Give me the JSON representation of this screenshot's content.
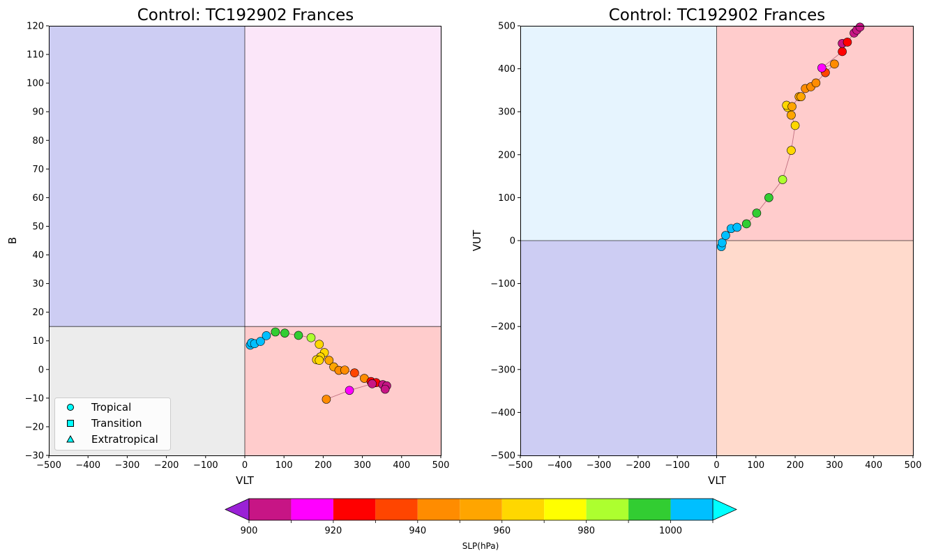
{
  "chart_data": [
    {
      "type": "scatter",
      "title": "Control: TC192902 Frances",
      "xlabel": "VLT",
      "ylabel": "B",
      "xlim": [
        -500,
        500
      ],
      "ylim": [
        -30,
        120
      ],
      "xticks": [
        "−500",
        "−400",
        "−300",
        "−200",
        "−100",
        "0",
        "100",
        "200",
        "300",
        "400",
        "500"
      ],
      "yticks": [
        "−30",
        "−20",
        "−10",
        "0",
        "10",
        "20",
        "30",
        "40",
        "50",
        "60",
        "70",
        "80",
        "90",
        "100",
        "110",
        "120"
      ],
      "quadrants": [
        {
          "x": [
            -500,
            0
          ],
          "y": [
            15,
            120
          ],
          "color": "#cdcdf3"
        },
        {
          "x": [
            0,
            500
          ],
          "y": [
            15,
            120
          ],
          "color": "#fbe6f9"
        },
        {
          "x": [
            -500,
            0
          ],
          "y": [
            -30,
            15
          ],
          "color": "#ececec"
        },
        {
          "x": [
            0,
            500
          ],
          "y": [
            -30,
            15
          ],
          "color": "#ffcccc"
        }
      ],
      "divider_x": 0,
      "divider_y": 15,
      "legend": {
        "position": "lower-left",
        "entries": [
          {
            "label": "Tropical",
            "marker": "circle"
          },
          {
            "label": "Transition",
            "marker": "square"
          },
          {
            "label": "Extratropical",
            "marker": "triangle"
          }
        ]
      },
      "points": [
        {
          "x": 14,
          "y": 8.5,
          "slp": 1005
        },
        {
          "x": 17,
          "y": 9.3,
          "slp": 1005
        },
        {
          "x": 25,
          "y": 9.0,
          "slp": 1005
        },
        {
          "x": 40,
          "y": 9.8,
          "slp": 1005
        },
        {
          "x": 55,
          "y": 11.8,
          "slp": 1005
        },
        {
          "x": 78,
          "y": 13.1,
          "slp": 995
        },
        {
          "x": 102,
          "y": 12.7,
          "slp": 995
        },
        {
          "x": 137,
          "y": 11.9,
          "slp": 995
        },
        {
          "x": 169,
          "y": 11.1,
          "slp": 985
        },
        {
          "x": 190,
          "y": 8.8,
          "slp": 965
        },
        {
          "x": 203,
          "y": 5.9,
          "slp": 965
        },
        {
          "x": 193,
          "y": 4.4,
          "slp": 965
        },
        {
          "x": 183,
          "y": 3.4,
          "slp": 965
        },
        {
          "x": 190,
          "y": 3.2,
          "slp": 965
        },
        {
          "x": 215,
          "y": 3.2,
          "slp": 955
        },
        {
          "x": 227,
          "y": 0.9,
          "slp": 955
        },
        {
          "x": 240,
          "y": -0.3,
          "slp": 945
        },
        {
          "x": 255,
          "y": -0.2,
          "slp": 945
        },
        {
          "x": 280,
          "y": -1.2,
          "slp": 935
        },
        {
          "x": 305,
          "y": -3.1,
          "slp": 945
        },
        {
          "x": 322,
          "y": -4.2,
          "slp": 925
        },
        {
          "x": 335,
          "y": -4.6,
          "slp": 925
        },
        {
          "x": 352,
          "y": -5.3,
          "slp": 905
        },
        {
          "x": 362,
          "y": -5.7,
          "slp": 905
        },
        {
          "x": 358,
          "y": -6.9,
          "slp": 905
        },
        {
          "x": 325,
          "y": -5.0,
          "slp": 905
        },
        {
          "x": 267,
          "y": -7.3,
          "slp": 915
        },
        {
          "x": 208,
          "y": -10.4,
          "slp": 945
        }
      ]
    },
    {
      "type": "scatter",
      "title": "Control: TC192902 Frances",
      "xlabel": "VLT",
      "ylabel": "VUT",
      "xlim": [
        -500,
        500
      ],
      "ylim": [
        -500,
        500
      ],
      "xticks": [
        "−500",
        "−400",
        "−300",
        "−200",
        "−100",
        "0",
        "100",
        "200",
        "300",
        "400",
        "500"
      ],
      "yticks": [
        "−500",
        "−400",
        "−300",
        "−200",
        "−100",
        "0",
        "100",
        "200",
        "300",
        "400",
        "500"
      ],
      "quadrants": [
        {
          "x": [
            -500,
            0
          ],
          "y": [
            0,
            500
          ],
          "color": "#e6f4fe"
        },
        {
          "x": [
            0,
            500
          ],
          "y": [
            0,
            500
          ],
          "color": "#ffcccc"
        },
        {
          "x": [
            -500,
            0
          ],
          "y": [
            -500,
            0
          ],
          "color": "#cdcdf3"
        },
        {
          "x": [
            0,
            500
          ],
          "y": [
            -500,
            0
          ],
          "color": "#ffdacc"
        }
      ],
      "divider_x": 0,
      "divider_y": 0,
      "points": [
        {
          "x": 12,
          "y": -14,
          "slp": 1005
        },
        {
          "x": 14,
          "y": -5,
          "slp": 1005
        },
        {
          "x": 23,
          "y": 12,
          "slp": 1005
        },
        {
          "x": 37,
          "y": 28,
          "slp": 1005
        },
        {
          "x": 52,
          "y": 31,
          "slp": 1005
        },
        {
          "x": 76,
          "y": 39,
          "slp": 995
        },
        {
          "x": 102,
          "y": 64,
          "slp": 995
        },
        {
          "x": 133,
          "y": 100,
          "slp": 995
        },
        {
          "x": 168,
          "y": 142,
          "slp": 985
        },
        {
          "x": 190,
          "y": 210,
          "slp": 965
        },
        {
          "x": 200,
          "y": 268,
          "slp": 965
        },
        {
          "x": 190,
          "y": 292,
          "slp": 955
        },
        {
          "x": 181,
          "y": 310,
          "slp": 965
        },
        {
          "x": 178,
          "y": 315,
          "slp": 965
        },
        {
          "x": 192,
          "y": 312,
          "slp": 955
        },
        {
          "x": 210,
          "y": 335,
          "slp": 955
        },
        {
          "x": 215,
          "y": 335,
          "slp": 955
        },
        {
          "x": 226,
          "y": 354,
          "slp": 945
        },
        {
          "x": 240,
          "y": 358,
          "slp": 945
        },
        {
          "x": 253,
          "y": 367,
          "slp": 945
        },
        {
          "x": 277,
          "y": 391,
          "slp": 935
        },
        {
          "x": 300,
          "y": 411,
          "slp": 945
        },
        {
          "x": 268,
          "y": 402,
          "slp": 915
        },
        {
          "x": 320,
          "y": 440,
          "slp": 925
        },
        {
          "x": 320,
          "y": 459,
          "slp": 905
        },
        {
          "x": 333,
          "y": 462,
          "slp": 925
        },
        {
          "x": 350,
          "y": 483,
          "slp": 905
        },
        {
          "x": 357,
          "y": 490,
          "slp": 905
        },
        {
          "x": 365,
          "y": 497,
          "slp": 905
        }
      ]
    }
  ],
  "colorbar": {
    "label": "SLP(hPa)",
    "min": 900,
    "max": 1010,
    "step": 10,
    "tick_labels": [
      "900",
      "920",
      "940",
      "960",
      "980",
      "1000"
    ],
    "tick_values": [
      900,
      920,
      940,
      960,
      980,
      1000
    ],
    "under_color": "#9a21d6",
    "over_color": "#00ffff",
    "bins": [
      {
        "from": 900,
        "to": 910,
        "color": "#c71585"
      },
      {
        "from": 910,
        "to": 920,
        "color": "#ff00ff"
      },
      {
        "from": 920,
        "to": 930,
        "color": "#ff0000"
      },
      {
        "from": 930,
        "to": 940,
        "color": "#ff4500"
      },
      {
        "from": 940,
        "to": 950,
        "color": "#ff8c00"
      },
      {
        "from": 950,
        "to": 960,
        "color": "#ffa500"
      },
      {
        "from": 960,
        "to": 970,
        "color": "#ffd700"
      },
      {
        "from": 970,
        "to": 980,
        "color": "#ffff00"
      },
      {
        "from": 980,
        "to": 990,
        "color": "#adff2f"
      },
      {
        "from": 990,
        "to": 1000,
        "color": "#32cd32"
      },
      {
        "from": 1000,
        "to": 1010,
        "color": "#00bfff"
      }
    ]
  },
  "marker_legend_color": "#00ffff",
  "track_color": "#c07080"
}
